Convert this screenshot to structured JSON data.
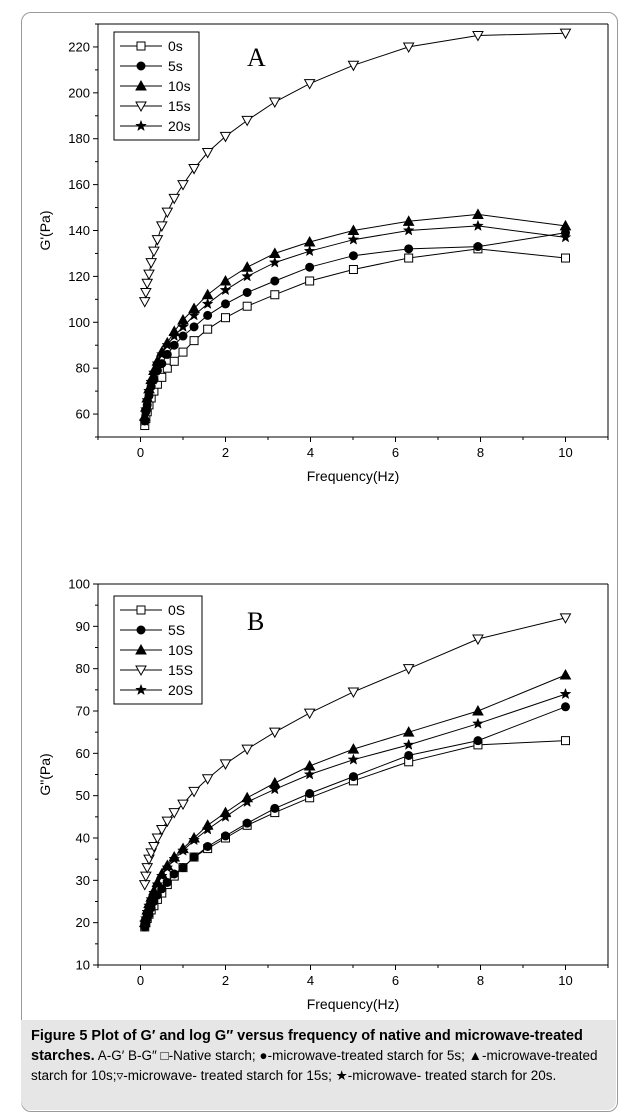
{
  "caption": {
    "bold": "Figure 5 Plot of G′ and log G″ versus frequency of native and microwave-treated starches.",
    "rest": " A-G′ B-G″ □-Native starch; ●-microwave-treated starch for 5s; ▲-microwave-treated starch for 10s;▿-microwave- treated starch for 15s; ★-microwave- treated starch for 20s."
  },
  "chart_data": [
    {
      "type": "line",
      "panel": "A",
      "xlabel": "Frequency(Hz)",
      "ylabel": "G'(Pa)",
      "xlim": [
        -1,
        11
      ],
      "ylim": [
        50,
        230
      ],
      "xticks": [
        0,
        2,
        4,
        6,
        8,
        10
      ],
      "yticks": [
        60,
        80,
        100,
        120,
        140,
        160,
        180,
        200,
        220
      ],
      "legend_position": "top-left",
      "grid": false,
      "x": [
        0.1,
        0.126,
        0.158,
        0.2,
        0.251,
        0.316,
        0.398,
        0.501,
        0.631,
        0.794,
        1.0,
        1.26,
        1.58,
        2.0,
        2.51,
        3.16,
        3.98,
        5.01,
        6.31,
        7.94,
        10.0
      ],
      "series": [
        {
          "name": "0s",
          "marker": "square-open",
          "values": [
            55,
            58,
            61,
            64,
            67,
            70,
            73,
            76,
            80,
            83,
            87,
            92,
            97,
            102,
            107,
            112,
            118,
            123,
            128,
            132,
            128
          ]
        },
        {
          "name": "5s",
          "marker": "circle-filled",
          "values": [
            57,
            61,
            64,
            68,
            72,
            75,
            79,
            82,
            86,
            90,
            94,
            98,
            103,
            108,
            113,
            118,
            124,
            129,
            132,
            133,
            139
          ]
        },
        {
          "name": "10s",
          "marker": "triangle-filled",
          "values": [
            59,
            63,
            67,
            71,
            75,
            79,
            83,
            87,
            91,
            96,
            101,
            106,
            112,
            118,
            124,
            130,
            135,
            140,
            144,
            147,
            142
          ]
        },
        {
          "name": "15s",
          "marker": "triangle-down-open",
          "values": [
            109,
            113,
            117,
            121,
            126,
            131,
            136,
            142,
            148,
            154,
            160,
            167,
            174,
            181,
            188,
            196,
            204,
            212,
            220,
            225,
            226
          ]
        },
        {
          "name": "20s",
          "marker": "star-filled",
          "values": [
            57,
            62,
            66,
            70,
            74,
            78,
            82,
            86,
            90,
            94,
            98,
            103,
            108,
            114,
            120,
            126,
            131,
            136,
            140,
            142,
            137
          ]
        }
      ]
    },
    {
      "type": "line",
      "panel": "B",
      "xlabel": "Frequency(Hz)",
      "ylabel": "G\"(Pa)",
      "xlim": [
        -1,
        11
      ],
      "ylim": [
        10,
        100
      ],
      "xticks": [
        0,
        2,
        4,
        6,
        8,
        10
      ],
      "yticks": [
        10,
        20,
        30,
        40,
        50,
        60,
        70,
        80,
        90,
        100
      ],
      "legend_position": "top-left",
      "grid": false,
      "x": [
        0.1,
        0.126,
        0.158,
        0.2,
        0.251,
        0.316,
        0.398,
        0.501,
        0.631,
        0.794,
        1.0,
        1.26,
        1.58,
        2.0,
        2.51,
        3.16,
        3.98,
        5.01,
        6.31,
        7.94,
        10.0
      ],
      "series": [
        {
          "name": "0S",
          "marker": "square-open",
          "values": [
            19,
            20,
            21,
            22,
            23,
            24,
            25.5,
            27,
            29,
            31,
            33,
            35.5,
            37.5,
            40,
            43,
            46,
            49.5,
            53.5,
            58,
            62,
            63
          ]
        },
        {
          "name": "5S",
          "marker": "circle-filled",
          "values": [
            19,
            20,
            21,
            22,
            23.5,
            25,
            26.5,
            28,
            29.5,
            31.5,
            33,
            35.5,
            38,
            40.5,
            43.5,
            47,
            50.5,
            54.5,
            59.5,
            63,
            71
          ]
        },
        {
          "name": "10S",
          "marker": "triangle-filled",
          "values": [
            20,
            21.5,
            23,
            24.5,
            26,
            27.5,
            29.5,
            31.5,
            33.5,
            35.5,
            37.5,
            40,
            43,
            46,
            49.5,
            53,
            57,
            61,
            65,
            70,
            78.5
          ]
        },
        {
          "name": "15S",
          "marker": "triangle-down-open",
          "values": [
            29,
            31,
            33,
            35,
            36.5,
            38,
            40,
            42,
            44,
            46,
            48,
            51,
            54,
            57.5,
            61,
            65,
            69.5,
            74.5,
            80,
            87,
            92
          ]
        },
        {
          "name": "20S",
          "marker": "star-filled",
          "values": [
            20,
            21,
            22.5,
            24,
            25.5,
            27,
            29,
            31,
            33,
            35,
            37,
            39.5,
            42,
            45,
            48.5,
            51.5,
            55,
            58.5,
            62,
            67,
            74
          ]
        }
      ]
    }
  ]
}
